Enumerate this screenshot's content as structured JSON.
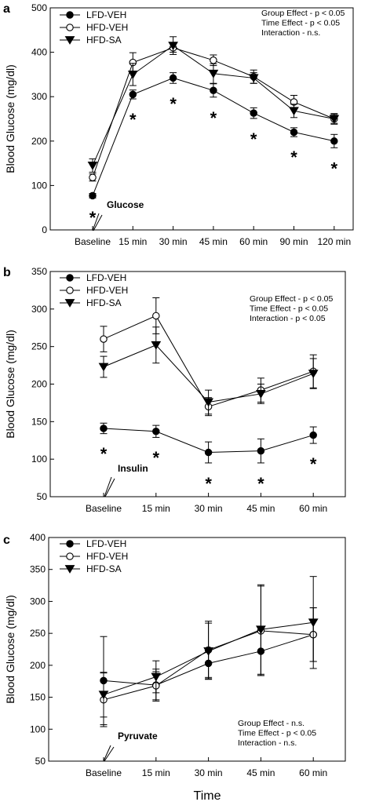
{
  "figure": {
    "xlabel": "Time",
    "series_styles": [
      {
        "name": "LFD-VEH",
        "marker": "circle",
        "fill": "#000000"
      },
      {
        "name": "HFD-VEH",
        "marker": "circle",
        "fill": "#ffffff"
      },
      {
        "name": "HFD-SA",
        "marker": "triangle-down",
        "fill": "#000000"
      }
    ]
  },
  "chart_data": [
    {
      "type": "line",
      "panel": "a",
      "ylabel": "Blood Glucose (mg/dl)",
      "ylim": [
        0,
        500
      ],
      "yticks": [
        "0",
        "100",
        "200",
        "300",
        "400",
        "500"
      ],
      "categories": [
        "Baseline",
        "15 min",
        "30 min",
        "45 min",
        "60 min",
        "90 min",
        "120 min"
      ],
      "stimulus_label": "Glucose",
      "legend_position": "top-left",
      "stats": [
        "Group Effect - p < 0.05",
        "Time Effect - p < 0.05",
        "Interaction - n.s."
      ],
      "significance_marks": [
        "*",
        "*",
        "*",
        "*",
        "*",
        "*",
        "*"
      ],
      "series": [
        {
          "name": "LFD-VEH",
          "values": [
            77,
            305,
            342,
            314,
            263,
            220,
            200
          ],
          "error": [
            5,
            10,
            12,
            15,
            12,
            10,
            15
          ]
        },
        {
          "name": "HFD-VEH",
          "values": [
            118,
            377,
            410,
            382,
            345,
            288,
            250
          ],
          "error": [
            8,
            22,
            10,
            12,
            15,
            15,
            10
          ]
        },
        {
          "name": "HFD-SA",
          "values": [
            145,
            350,
            415,
            352,
            342,
            268,
            250
          ],
          "error": [
            15,
            25,
            20,
            22,
            12,
            15,
            12
          ]
        }
      ]
    },
    {
      "type": "line",
      "panel": "b",
      "ylabel": "Blood Glucose (mg/dl)",
      "ylim": [
        50,
        350
      ],
      "yticks": [
        "50",
        "100",
        "150",
        "200",
        "250",
        "300",
        "350"
      ],
      "categories": [
        "Baseline",
        "15 min",
        "30 min",
        "45 min",
        "60 min"
      ],
      "stimulus_label": "Insulin",
      "legend_position": "top-left",
      "stats": [
        "Group Effect - p < 0.05",
        "Time Effect - p < 0.05",
        "Interaction - p < 0.05"
      ],
      "significance_marks": [
        "*",
        "*",
        "*",
        "*",
        "*"
      ],
      "series": [
        {
          "name": "LFD-VEH",
          "values": [
            141,
            137,
            109,
            111,
            132
          ],
          "error": [
            7,
            8,
            14,
            16,
            11
          ]
        },
        {
          "name": "HFD-VEH",
          "values": [
            260,
            291,
            170,
            192,
            217
          ],
          "error": [
            17,
            24,
            12,
            16,
            22
          ]
        },
        {
          "name": "HFD-SA",
          "values": [
            223,
            252,
            176,
            187,
            214
          ],
          "error": [
            14,
            24,
            16,
            13,
            20
          ]
        }
      ]
    },
    {
      "type": "line",
      "panel": "c",
      "ylabel": "Blood Glucose (mg/dl)",
      "ylim": [
        50,
        400
      ],
      "yticks": [
        "50",
        "100",
        "150",
        "200",
        "250",
        "300",
        "350",
        "400"
      ],
      "categories": [
        "Baseline",
        "15 min",
        "30 min",
        "45 min",
        "60 min"
      ],
      "stimulus_label": "Pyruvate",
      "legend_position": "top-left",
      "stats": [
        "Group Effect - n.s.",
        "Time Effect - p < 0.05",
        "Interaction - n.s."
      ],
      "series": [
        {
          "name": "LFD-VEH",
          "values": [
            176,
            169,
            203,
            222,
            248
          ],
          "error": [
            69,
            25,
            22,
            38,
            42
          ]
        },
        {
          "name": "HFD-VEH",
          "values": [
            146,
            168,
            224,
            254,
            248
          ],
          "error": [
            42,
            22,
            45,
            70,
            42
          ]
        },
        {
          "name": "HFD-SA",
          "values": [
            154,
            182,
            222,
            256,
            267
          ],
          "error": [
            35,
            25,
            44,
            70,
            72
          ]
        }
      ]
    }
  ]
}
